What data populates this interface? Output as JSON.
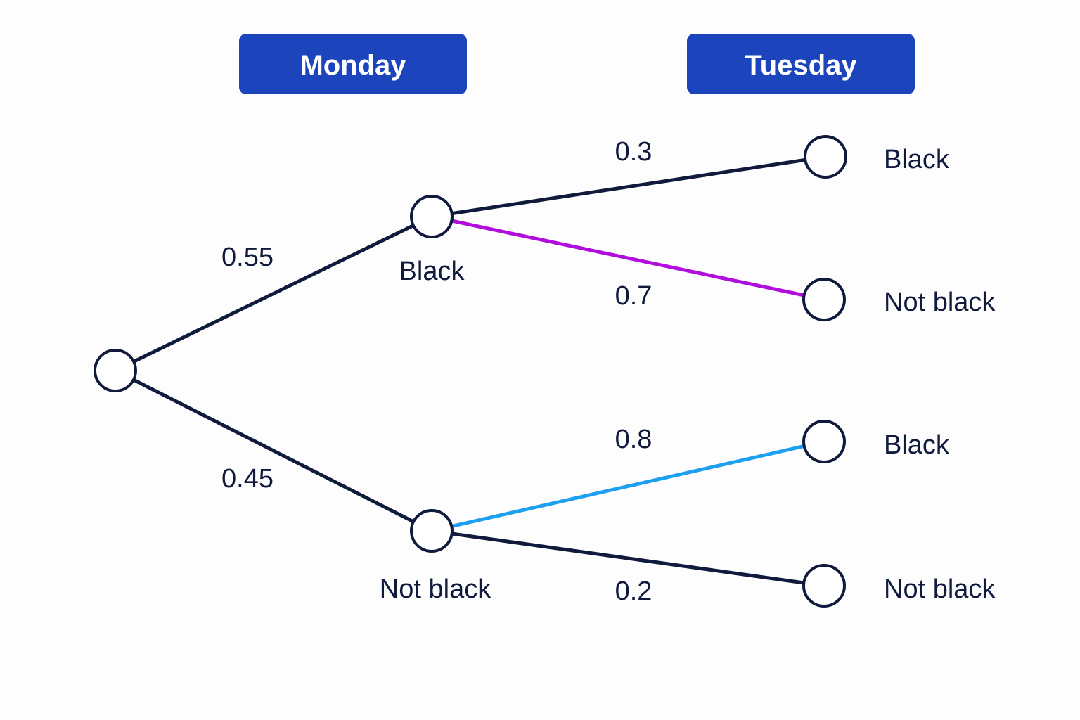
{
  "headers": {
    "monday": "Monday",
    "tuesday": "Tuesday"
  },
  "colors": {
    "header_bg": "#1c45bd",
    "line_default": "#0f1a3d",
    "highlight_purple": "#b10ddd",
    "highlight_blue": "#1ea0f0"
  },
  "tree": {
    "monday_branches": [
      {
        "probability": "0.55",
        "outcome": "Black"
      },
      {
        "probability": "0.45",
        "outcome": "Not black"
      }
    ],
    "tuesday_branches_after_black": [
      {
        "probability": "0.3",
        "outcome": "Black",
        "color": "#0f1a3d"
      },
      {
        "probability": "0.7",
        "outcome": "Not black",
        "color": "#b10ddd"
      }
    ],
    "tuesday_branches_after_not_black": [
      {
        "probability": "0.8",
        "outcome": "Black",
        "color": "#1ea0f0"
      },
      {
        "probability": "0.2",
        "outcome": "Not black",
        "color": "#0f1a3d"
      }
    ]
  }
}
